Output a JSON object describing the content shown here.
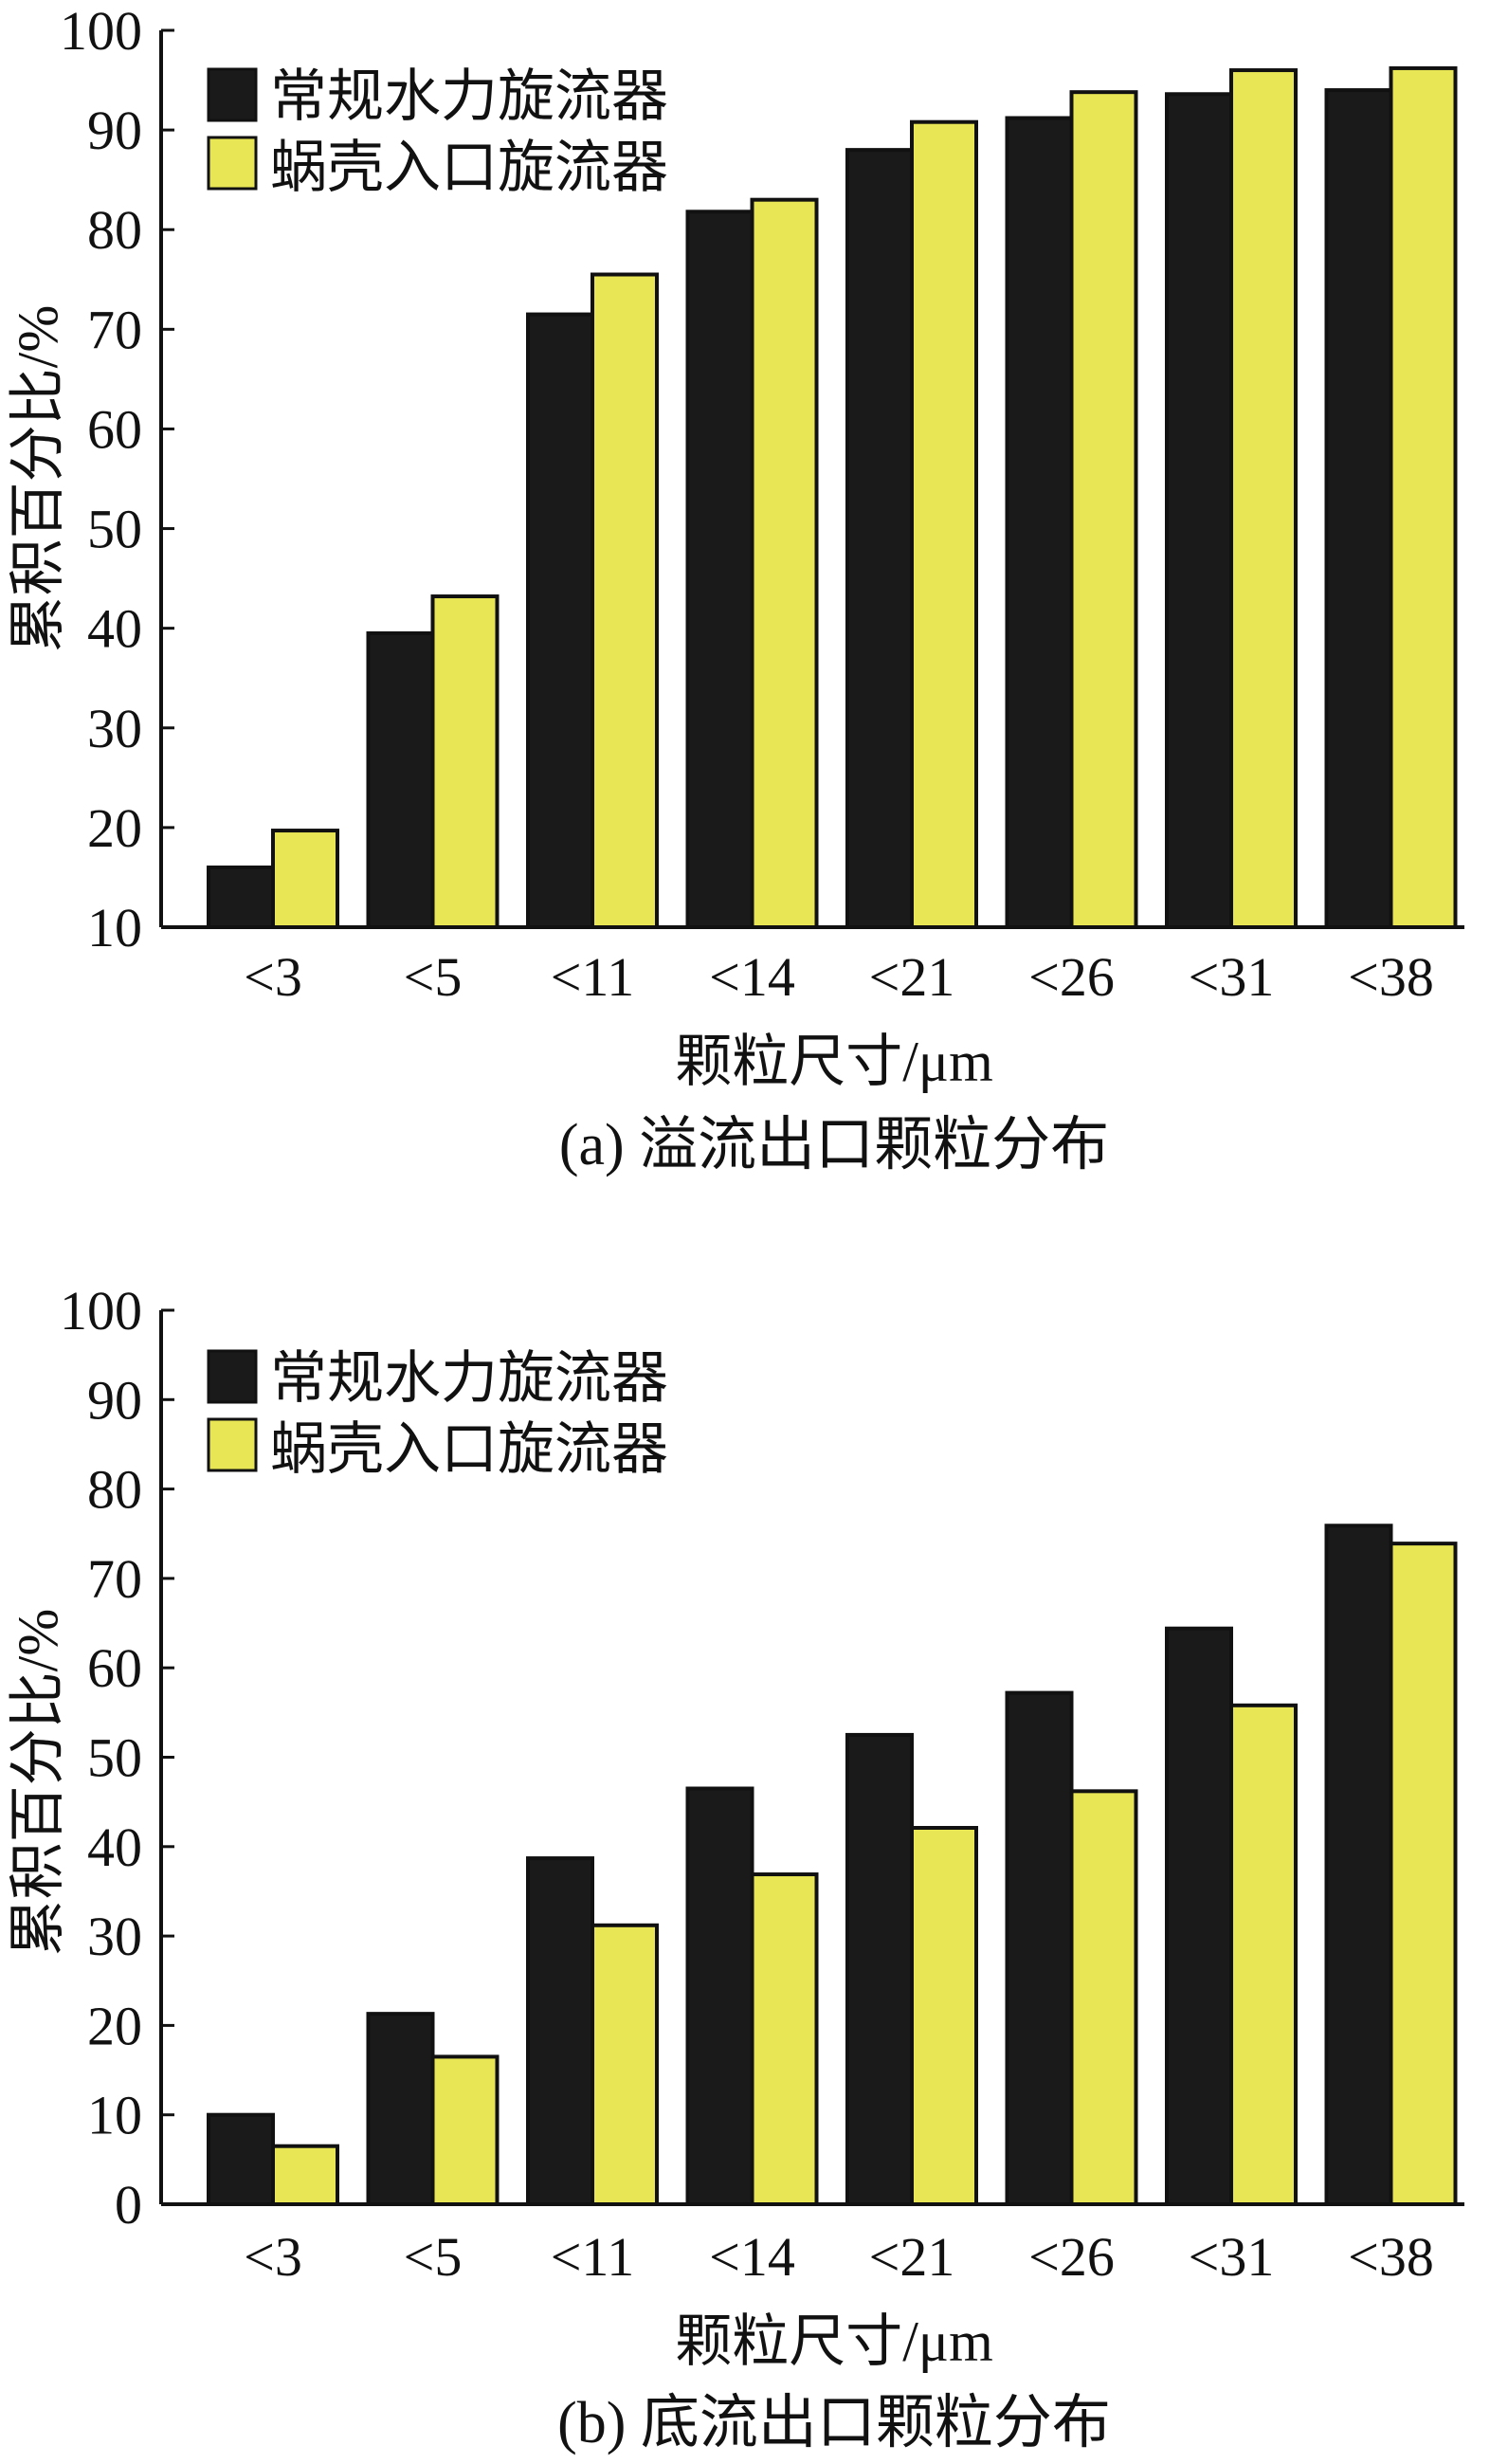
{
  "colors": {
    "series_1": "#1a1a1a",
    "series_2": "#e8e655",
    "bar_outline": "#111111",
    "axis": "#111111"
  },
  "chart_data": [
    {
      "type": "bar",
      "caption": "(a) 溢流出口颗粒分布",
      "xlabel": "颗粒尺寸/μm",
      "ylabel": "累积百分比/%",
      "categories": [
        "<3",
        "<5",
        "<11",
        "<14",
        "<21",
        "<26",
        "<31",
        "<38"
      ],
      "ylim": [
        10,
        100
      ],
      "yticks": [
        10,
        20,
        30,
        40,
        50,
        60,
        70,
        80,
        90,
        100
      ],
      "legend_position": "top-left",
      "grid": false,
      "series": [
        {
          "name": "常规水力旋流器",
          "color_key": "series_1",
          "values": [
            16,
            39.5,
            71.5,
            81.8,
            88,
            91.2,
            93.6,
            94
          ]
        },
        {
          "name": "蜗壳入口旋流器",
          "color_key": "series_2",
          "values": [
            19.7,
            43.2,
            75.5,
            83,
            90.8,
            93.8,
            96,
            96.2
          ]
        }
      ]
    },
    {
      "type": "bar",
      "caption": "(b) 底流出口颗粒分布",
      "xlabel": "颗粒尺寸/μm",
      "ylabel": "累积百分比/%",
      "categories": [
        "<3",
        "<5",
        "<11",
        "<14",
        "<21",
        "<26",
        "<31",
        "<38"
      ],
      "ylim": [
        0,
        100
      ],
      "yticks": [
        0,
        10,
        20,
        30,
        40,
        50,
        60,
        70,
        80,
        90,
        100
      ],
      "legend_position": "top-left",
      "grid": false,
      "series": [
        {
          "name": "常规水力旋流器",
          "color_key": "series_1",
          "values": [
            10,
            21.3,
            38.7,
            46.5,
            52.5,
            57.2,
            64.4,
            75.9
          ]
        },
        {
          "name": "蜗壳入口旋流器",
          "color_key": "series_2",
          "values": [
            6.5,
            16.5,
            31.2,
            36.9,
            42.1,
            46.2,
            55.8,
            73.9
          ]
        }
      ]
    }
  ]
}
